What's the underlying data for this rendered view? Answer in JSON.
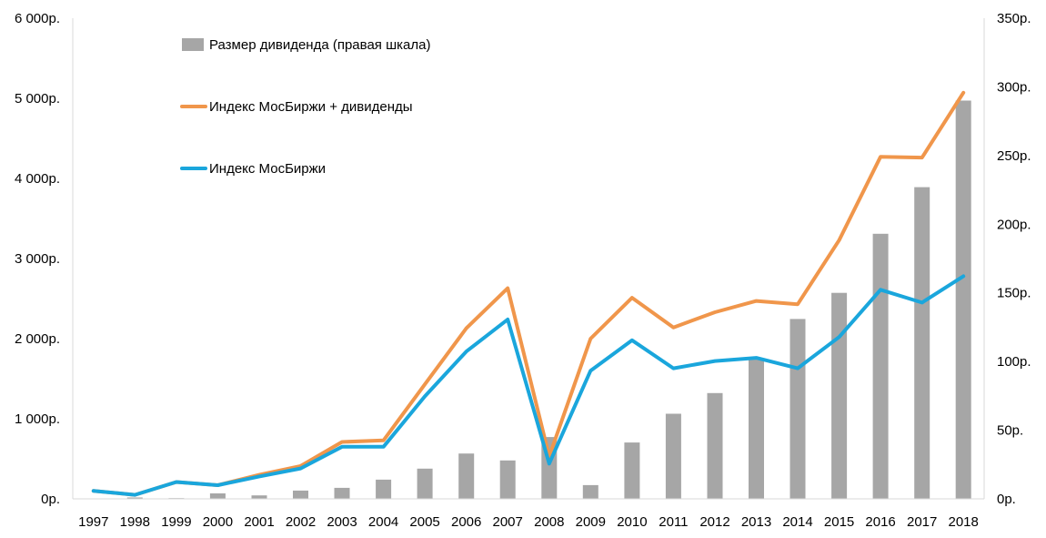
{
  "chart_data": {
    "type": "bar+line",
    "categories": [
      "1997",
      "1998",
      "1999",
      "2000",
      "2001",
      "2002",
      "2003",
      "2004",
      "2005",
      "2006",
      "2007",
      "2008",
      "2009",
      "2010",
      "2011",
      "2012",
      "2013",
      "2014",
      "2015",
      "2016",
      "2017",
      "2018"
    ],
    "series": [
      {
        "name": "Размер дивиденда (правая шкала)",
        "type": "bar",
        "axis": "right",
        "color": "#a6a6a6",
        "values": [
          0,
          1,
          0.5,
          4,
          2.5,
          6,
          8,
          14,
          22,
          33,
          28,
          45,
          10,
          41,
          62,
          77,
          102,
          131,
          150,
          193,
          227,
          290
        ]
      },
      {
        "name": "Индекс МосБиржи + дивиденды",
        "type": "line",
        "axis": "left",
        "color": "#f0964b",
        "values": [
          100,
          50,
          210,
          170,
          300,
          410,
          710,
          730,
          1430,
          2130,
          2630,
          530,
          2000,
          2510,
          2140,
          2330,
          2470,
          2430,
          3230,
          4270,
          4260,
          5070
        ]
      },
      {
        "name": "Индекс МосБиржи",
        "type": "line",
        "axis": "left",
        "color": "#1aa6dc",
        "values": [
          100,
          50,
          210,
          170,
          280,
          380,
          650,
          650,
          1280,
          1840,
          2240,
          440,
          1600,
          1980,
          1630,
          1720,
          1760,
          1630,
          2020,
          2610,
          2450,
          2780
        ]
      }
    ],
    "y_left": {
      "min": 0,
      "max": 6000,
      "ticks": [
        0,
        1000,
        2000,
        3000,
        4000,
        5000,
        6000
      ],
      "tick_labels": [
        "0р.",
        "1 000р.",
        "2 000р.",
        "3 000р.",
        "4 000р.",
        "5 000р.",
        "6 000р."
      ]
    },
    "y_right": {
      "min": 0,
      "max": 350,
      "ticks": [
        0,
        50,
        100,
        150,
        200,
        250,
        300,
        350
      ],
      "tick_labels": [
        "0р.",
        "50р.",
        "100р.",
        "150р.",
        "200р.",
        "250р.",
        "300р.",
        "350р."
      ]
    },
    "legend": {
      "placement": "top-left",
      "order": [
        0,
        1,
        2
      ]
    },
    "grid": false
  }
}
